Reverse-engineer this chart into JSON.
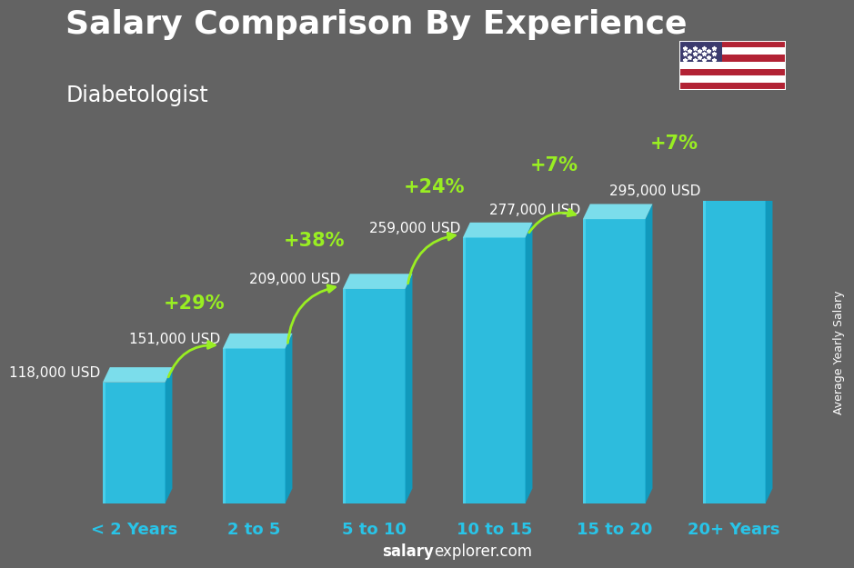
{
  "categories": [
    "< 2 Years",
    "2 to 5",
    "5 to 10",
    "10 to 15",
    "15 to 20",
    "20+ Years"
  ],
  "values": [
    118000,
    151000,
    209000,
    259000,
    277000,
    295000
  ],
  "value_labels": [
    "118,000 USD",
    "151,000 USD",
    "209,000 USD",
    "259,000 USD",
    "277,000 USD",
    "295,000 USD"
  ],
  "pct_changes": [
    "+29%",
    "+38%",
    "+24%",
    "+7%",
    "+7%"
  ],
  "bar_front_color": "#29c4e8",
  "bar_top_color": "#7ee8f8",
  "bar_right_color": "#0a9ec4",
  "bg_color": "#636363",
  "title": "Salary Comparison By Experience",
  "subtitle": "Diabetologist",
  "ylabel": "Average Yearly Salary",
  "footer_bold": "salary",
  "footer_normal": "explorer.com",
  "title_fontsize": 26,
  "subtitle_fontsize": 17,
  "cat_fontsize": 13,
  "val_fontsize": 11,
  "pct_fontsize": 15,
  "green_color": "#99ee22",
  "white_color": "#ffffff",
  "ylabel_fontsize": 9
}
